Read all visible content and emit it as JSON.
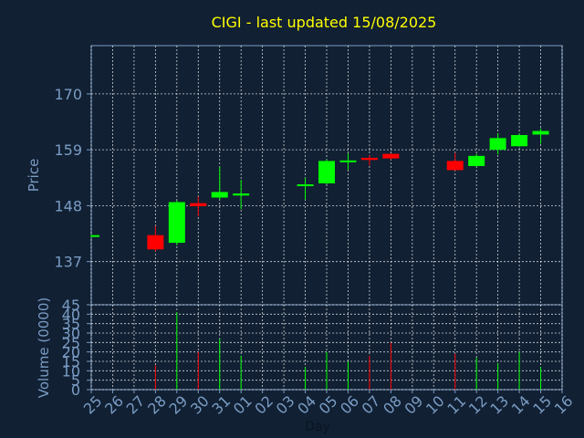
{
  "chart_data": {
    "type": "candlestick",
    "title": "CIGI - last updated 15/08/2025",
    "xlabel": "Day",
    "price_panel": {
      "ylabel": "Price",
      "yticks": [
        137,
        148,
        159,
        170
      ],
      "ylim": [
        128.5,
        179.5
      ],
      "candles": [
        {
          "day": "25",
          "open": 142.0,
          "high": 142.3,
          "low": 141.8,
          "close": 142.2
        },
        {
          "day": "28",
          "open": 142.2,
          "high": 144.0,
          "low": 139.0,
          "close": 139.4
        },
        {
          "day": "29",
          "open": 140.7,
          "high": 149.0,
          "low": 140.2,
          "close": 148.7
        },
        {
          "day": "30",
          "open": 148.5,
          "high": 149.8,
          "low": 145.9,
          "close": 147.9
        },
        {
          "day": "31",
          "open": 149.6,
          "high": 155.6,
          "low": 149.2,
          "close": 150.7
        },
        {
          "day": "01",
          "open": 150.0,
          "high": 153.1,
          "low": 147.3,
          "close": 150.4
        },
        {
          "day": "04",
          "open": 151.9,
          "high": 153.5,
          "low": 149.2,
          "close": 152.2
        },
        {
          "day": "05",
          "open": 152.4,
          "high": 157.1,
          "low": 152.2,
          "close": 156.8
        },
        {
          "day": "06",
          "open": 156.6,
          "high": 158.3,
          "low": 155.1,
          "close": 156.9
        },
        {
          "day": "07",
          "open": 157.4,
          "high": 157.9,
          "low": 155.9,
          "close": 157.0
        },
        {
          "day": "08",
          "open": 158.2,
          "high": 158.3,
          "low": 157.1,
          "close": 157.3
        },
        {
          "day": "11",
          "open": 156.8,
          "high": 158.4,
          "low": 154.9,
          "close": 155.0
        },
        {
          "day": "12",
          "open": 155.8,
          "high": 158.2,
          "low": 155.7,
          "close": 157.8
        },
        {
          "day": "13",
          "open": 159.0,
          "high": 162.2,
          "low": 158.1,
          "close": 161.3
        },
        {
          "day": "14",
          "open": 159.7,
          "high": 162.2,
          "low": 159.6,
          "close": 161.9
        },
        {
          "day": "15",
          "open": 162.0,
          "high": 163.2,
          "low": 160.2,
          "close": 162.7
        }
      ]
    },
    "volume_panel": {
      "ylabel": "Volume (0000)",
      "yticks": [
        0,
        5,
        10,
        15,
        20,
        25,
        30,
        35,
        40,
        45
      ],
      "ylim": [
        0,
        45
      ],
      "bars": [
        {
          "day": "25",
          "value": 0,
          "color": "green"
        },
        {
          "day": "28",
          "value": 13,
          "color": "red"
        },
        {
          "day": "29",
          "value": 41,
          "color": "green"
        },
        {
          "day": "30",
          "value": 20,
          "color": "red"
        },
        {
          "day": "31",
          "value": 27,
          "color": "green"
        },
        {
          "day": "01",
          "value": 18,
          "color": "green"
        },
        {
          "day": "04",
          "value": 12,
          "color": "green"
        },
        {
          "day": "05",
          "value": 20,
          "color": "green"
        },
        {
          "day": "06",
          "value": 15,
          "color": "green"
        },
        {
          "day": "07",
          "value": 18,
          "color": "red"
        },
        {
          "day": "08",
          "value": 25,
          "color": "red"
        },
        {
          "day": "11",
          "value": 19,
          "color": "red"
        },
        {
          "day": "12",
          "value": 17,
          "color": "green"
        },
        {
          "day": "13",
          "value": 14,
          "color": "green"
        },
        {
          "day": "14",
          "value": 20,
          "color": "green"
        },
        {
          "day": "15",
          "value": 12,
          "color": "green"
        }
      ]
    },
    "x_tick_labels": [
      "25",
      "26",
      "27",
      "28",
      "29",
      "30",
      "31",
      "01",
      "02",
      "03",
      "04",
      "05",
      "06",
      "07",
      "08",
      "09",
      "10",
      "11",
      "12",
      "13",
      "14",
      "15",
      "16"
    ],
    "grid": true,
    "colors": {
      "background": "#112033",
      "up": "#00ff00",
      "down": "#ff0000",
      "grid": "#ffffff",
      "axis_text": "#7a9cc4",
      "title": "#ffff00"
    }
  }
}
